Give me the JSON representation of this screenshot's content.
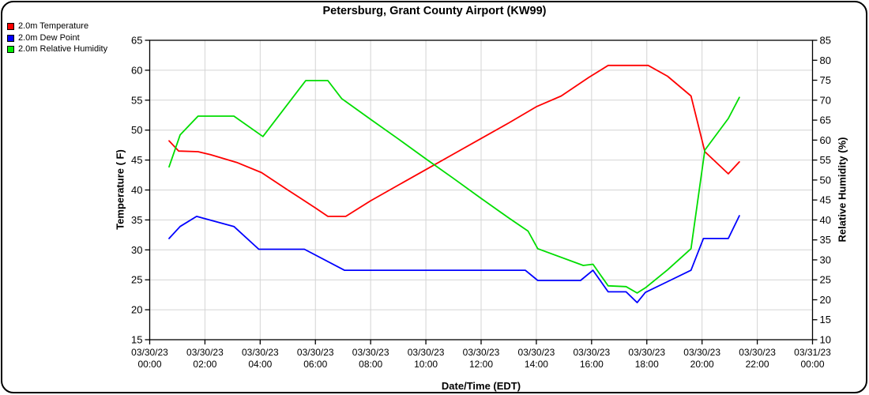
{
  "chart_data": {
    "type": "line",
    "title": "Petersburg, Grant County Airport (KW99)",
    "xlabel": "Date/Time (EDT)",
    "ylabel_left": "Temperature ( F)",
    "ylabel_right": "Relative Humidity (%)",
    "grid": "on",
    "legend_position": "top-left",
    "x_range_hours": [
      0,
      24
    ],
    "ylim_left": [
      15,
      65
    ],
    "ylim_right": [
      10,
      85
    ],
    "yticks_left": [
      15,
      20,
      25,
      30,
      35,
      40,
      45,
      50,
      55,
      60,
      65
    ],
    "yticks_right": [
      10,
      15,
      20,
      25,
      30,
      35,
      40,
      45,
      50,
      55,
      60,
      65,
      70,
      75,
      80,
      85
    ],
    "x_ticks": [
      {
        "hour": 0,
        "date": "03/30/23",
        "time": "00:00"
      },
      {
        "hour": 2,
        "date": "03/30/23",
        "time": "02:00"
      },
      {
        "hour": 4,
        "date": "03/30/23",
        "time": "04:00"
      },
      {
        "hour": 6,
        "date": "03/30/23",
        "time": "06:00"
      },
      {
        "hour": 8,
        "date": "03/30/23",
        "time": "08:00"
      },
      {
        "hour": 10,
        "date": "03/30/23",
        "time": "10:00"
      },
      {
        "hour": 12,
        "date": "03/30/23",
        "time": "12:00"
      },
      {
        "hour": 14,
        "date": "03/30/23",
        "time": "14:00"
      },
      {
        "hour": 16,
        "date": "03/30/23",
        "time": "16:00"
      },
      {
        "hour": 18,
        "date": "03/30/23",
        "time": "18:00"
      },
      {
        "hour": 20,
        "date": "03/30/23",
        "time": "20:00"
      },
      {
        "hour": 22,
        "date": "03/30/23",
        "time": "22:00"
      },
      {
        "hour": 24,
        "date": "03/31/23",
        "time": "00:00"
      }
    ],
    "colors": {
      "temperature": "#ff0000",
      "dew_point": "#0000ff",
      "relative_humidity": "#00dd00",
      "grid": "#d4d4d4",
      "axis": "#000000"
    },
    "series": [
      {
        "name": "2.0m Temperature",
        "axis": "left",
        "color": "#ff0000",
        "points": [
          [
            0.7,
            48.2
          ],
          [
            1.05,
            46.5
          ],
          [
            1.75,
            46.4
          ],
          [
            2.2,
            45.9
          ],
          [
            3.15,
            44.6
          ],
          [
            4.05,
            42.9
          ],
          [
            5.0,
            40.0
          ],
          [
            6.0,
            37.0
          ],
          [
            6.45,
            35.6
          ],
          [
            7.1,
            35.6
          ],
          [
            8,
            38.2
          ],
          [
            9,
            40.8
          ],
          [
            10,
            43.4
          ],
          [
            11,
            46.0
          ],
          [
            12,
            48.6
          ],
          [
            13,
            51.2
          ],
          [
            14,
            53.9
          ],
          [
            14.9,
            55.7
          ],
          [
            15.9,
            58.8
          ],
          [
            16.6,
            60.8
          ],
          [
            18.05,
            60.8
          ],
          [
            18.75,
            59.0
          ],
          [
            19.6,
            55.7
          ],
          [
            20.1,
            46.4
          ],
          [
            20.95,
            42.7
          ],
          [
            21.35,
            44.7
          ]
        ]
      },
      {
        "name": "2.0m Dew Point",
        "axis": "left",
        "color": "#0000ff",
        "points": [
          [
            0.7,
            31.9
          ],
          [
            1.1,
            33.9
          ],
          [
            1.7,
            35.6
          ],
          [
            3.05,
            33.9
          ],
          [
            3.95,
            30.1
          ],
          [
            5.6,
            30.1
          ],
          [
            7.05,
            26.6
          ],
          [
            13.6,
            26.6
          ],
          [
            14.05,
            24.9
          ],
          [
            15.6,
            24.9
          ],
          [
            16.05,
            26.6
          ],
          [
            16.6,
            23.0
          ],
          [
            17.25,
            23.0
          ],
          [
            17.65,
            21.2
          ],
          [
            17.95,
            22.9
          ],
          [
            18.75,
            24.7
          ],
          [
            19.6,
            26.6
          ],
          [
            20.05,
            31.9
          ],
          [
            20.95,
            31.9
          ],
          [
            21.35,
            35.7
          ]
        ]
      },
      {
        "name": "2.0m Relative Humidity",
        "axis": "right",
        "color": "#00dd00",
        "points": [
          [
            0.7,
            53.3
          ],
          [
            1.1,
            61.3
          ],
          [
            1.75,
            66.0
          ],
          [
            3.05,
            66.0
          ],
          [
            4.1,
            60.9
          ],
          [
            5.65,
            74.9
          ],
          [
            6.45,
            74.9
          ],
          [
            6.95,
            70.4
          ],
          [
            8,
            65.2
          ],
          [
            9,
            60.3
          ],
          [
            10,
            55.3
          ],
          [
            11,
            50.4
          ],
          [
            12,
            45.4
          ],
          [
            13,
            40.5
          ],
          [
            13.7,
            37.2
          ],
          [
            14.05,
            32.8
          ],
          [
            15.7,
            28.6
          ],
          [
            16.05,
            28.9
          ],
          [
            16.6,
            23.5
          ],
          [
            17.25,
            23.3
          ],
          [
            17.65,
            21.7
          ],
          [
            17.95,
            23.0
          ],
          [
            18.75,
            27.5
          ],
          [
            19.6,
            32.8
          ],
          [
            20.1,
            57.5
          ],
          [
            20.95,
            65.4
          ],
          [
            21.35,
            70.7
          ]
        ]
      }
    ]
  }
}
